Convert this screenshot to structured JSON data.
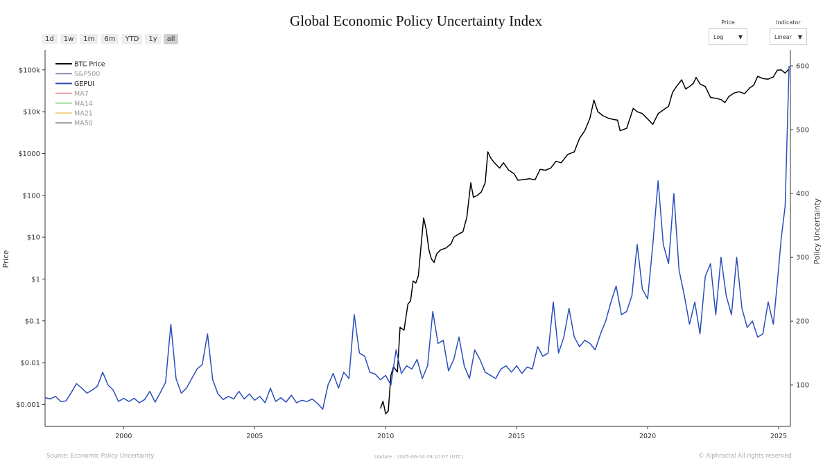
{
  "page": {
    "title": "Global Economic Policy Uncertainty Index",
    "range_buttons": [
      "1d",
      "1w",
      "1m",
      "6m",
      "YTD",
      "1y",
      "all"
    ],
    "active_range": "all",
    "controls": {
      "price": {
        "label": "Price",
        "value": "Log"
      },
      "indicator": {
        "label": "Indicator",
        "value": "Linear"
      }
    },
    "footer": {
      "source": "Source: Economic Policy Uncertainty",
      "update": "Update : 2025-06-04 08:10:07 (UTC)",
      "copyright": "© Alphractal All rights reserved"
    }
  },
  "chart_data": {
    "type": "line",
    "title": "Global Economic Policy Uncertainty Index",
    "xlabel": "",
    "ylabel_left": "Price",
    "ylabel_right": "Policy Uncertainty",
    "xlim": [
      1997.0,
      2025.45
    ],
    "x_ticks": [
      2000,
      2005,
      2010,
      2015,
      2020,
      2025
    ],
    "y_left_scale": "log",
    "y_left_lim": [
      0.0003,
      300000
    ],
    "y_left_ticks": [
      {
        "value": 0.001,
        "label": "$0.001"
      },
      {
        "value": 0.01,
        "label": "$0.01"
      },
      {
        "value": 0.1,
        "label": "$0.1"
      },
      {
        "value": 1,
        "label": "$1"
      },
      {
        "value": 10,
        "label": "$10"
      },
      {
        "value": 100,
        "label": "$100"
      },
      {
        "value": 1000,
        "label": "$1000"
      },
      {
        "value": 10000,
        "label": "$10k"
      },
      {
        "value": 100000,
        "label": "$100k"
      }
    ],
    "y_right_scale": "linear",
    "y_right_lim": [
      35,
      625
    ],
    "y_right_ticks": [
      100,
      200,
      300,
      400,
      500,
      600
    ],
    "grid": false,
    "legend_position": "top-left",
    "legend": [
      {
        "name": "BTC Price",
        "color": "#000000",
        "text_color": "#222222"
      },
      {
        "name": "S&P500",
        "color": "#8a8aa8",
        "text_color": "#999999"
      },
      {
        "name": "GEPUI",
        "color": "#2a4dbd",
        "text_color": "#222222"
      },
      {
        "name": "MA7",
        "color": "#e8a0a0",
        "text_color": "#999999"
      },
      {
        "name": "MA14",
        "color": "#a8d8a8",
        "text_color": "#999999"
      },
      {
        "name": "MA21",
        "color": "#f2d28c",
        "text_color": "#999999"
      },
      {
        "name": "MA50",
        "color": "#8aa08a",
        "text_color": "#999999"
      }
    ],
    "series": [
      {
        "name": "BTC Price",
        "axis": "left",
        "color": "#000000",
        "points": [
          [
            2009.8,
            0.0008
          ],
          [
            2009.9,
            0.0012
          ],
          [
            2010.0,
            0.0006
          ],
          [
            2010.1,
            0.0007
          ],
          [
            2010.2,
            0.005
          ],
          [
            2010.3,
            0.008
          ],
          [
            2010.45,
            0.006
          ],
          [
            2010.55,
            0.07
          ],
          [
            2010.7,
            0.06
          ],
          [
            2010.85,
            0.25
          ],
          [
            2010.95,
            0.3
          ],
          [
            2011.05,
            0.9
          ],
          [
            2011.15,
            0.8
          ],
          [
            2011.25,
            1.2
          ],
          [
            2011.35,
            6
          ],
          [
            2011.45,
            29
          ],
          [
            2011.55,
            15
          ],
          [
            2011.65,
            5
          ],
          [
            2011.75,
            3
          ],
          [
            2011.85,
            2.5
          ],
          [
            2011.95,
            4
          ],
          [
            2012.1,
            5
          ],
          [
            2012.3,
            5.5
          ],
          [
            2012.5,
            7
          ],
          [
            2012.6,
            10
          ],
          [
            2012.8,
            12
          ],
          [
            2012.95,
            13.5
          ],
          [
            2013.1,
            30
          ],
          [
            2013.25,
            200
          ],
          [
            2013.35,
            90
          ],
          [
            2013.5,
            100
          ],
          [
            2013.65,
            120
          ],
          [
            2013.8,
            200
          ],
          [
            2013.9,
            1100
          ],
          [
            2014.0,
            800
          ],
          [
            2014.15,
            600
          ],
          [
            2014.35,
            450
          ],
          [
            2014.5,
            600
          ],
          [
            2014.7,
            400
          ],
          [
            2014.9,
            330
          ],
          [
            2015.05,
            230
          ],
          [
            2015.3,
            240
          ],
          [
            2015.5,
            250
          ],
          [
            2015.7,
            235
          ],
          [
            2015.9,
            420
          ],
          [
            2016.1,
            400
          ],
          [
            2016.3,
            450
          ],
          [
            2016.5,
            650
          ],
          [
            2016.7,
            600
          ],
          [
            2016.95,
            950
          ],
          [
            2017.2,
            1100
          ],
          [
            2017.4,
            2300
          ],
          [
            2017.6,
            3500
          ],
          [
            2017.8,
            7000
          ],
          [
            2017.95,
            19000
          ],
          [
            2018.1,
            10000
          ],
          [
            2018.3,
            8000
          ],
          [
            2018.5,
            7000
          ],
          [
            2018.7,
            6500
          ],
          [
            2018.85,
            6300
          ],
          [
            2018.95,
            3500
          ],
          [
            2019.2,
            4000
          ],
          [
            2019.45,
            12000
          ],
          [
            2019.6,
            10000
          ],
          [
            2019.8,
            9000
          ],
          [
            2019.95,
            7200
          ],
          [
            2020.2,
            5000
          ],
          [
            2020.4,
            9000
          ],
          [
            2020.6,
            11000
          ],
          [
            2020.8,
            13500
          ],
          [
            2020.95,
            29000
          ],
          [
            2021.1,
            40000
          ],
          [
            2021.3,
            58000
          ],
          [
            2021.45,
            35000
          ],
          [
            2021.6,
            40000
          ],
          [
            2021.75,
            48000
          ],
          [
            2021.85,
            66000
          ],
          [
            2022.0,
            46000
          ],
          [
            2022.2,
            40000
          ],
          [
            2022.4,
            22000
          ],
          [
            2022.6,
            21000
          ],
          [
            2022.8,
            19500
          ],
          [
            2022.95,
            16500
          ],
          [
            2023.1,
            23000
          ],
          [
            2023.3,
            28000
          ],
          [
            2023.5,
            30000
          ],
          [
            2023.7,
            27000
          ],
          [
            2023.9,
            37000
          ],
          [
            2024.05,
            43000
          ],
          [
            2024.2,
            70000
          ],
          [
            2024.4,
            62000
          ],
          [
            2024.6,
            60000
          ],
          [
            2024.8,
            68000
          ],
          [
            2024.95,
            98000
          ],
          [
            2025.1,
            100000
          ],
          [
            2025.25,
            84000
          ],
          [
            2025.4,
            105000
          ]
        ]
      },
      {
        "name": "GEPUI",
        "axis": "right",
        "color": "#2a4dbd",
        "points": [
          [
            1997.0,
            80
          ],
          [
            1997.2,
            78
          ],
          [
            1997.4,
            82
          ],
          [
            1997.6,
            74
          ],
          [
            1997.8,
            75
          ],
          [
            1998.0,
            88
          ],
          [
            1998.2,
            102
          ],
          [
            1998.4,
            95
          ],
          [
            1998.6,
            87
          ],
          [
            1998.8,
            92
          ],
          [
            1999.0,
            98
          ],
          [
            1999.2,
            120
          ],
          [
            1999.4,
            100
          ],
          [
            1999.6,
            92
          ],
          [
            1999.8,
            74
          ],
          [
            2000.0,
            79
          ],
          [
            2000.2,
            74
          ],
          [
            2000.4,
            79
          ],
          [
            2000.6,
            72
          ],
          [
            2000.8,
            77
          ],
          [
            2001.0,
            90
          ],
          [
            2001.2,
            73
          ],
          [
            2001.4,
            88
          ],
          [
            2001.6,
            104
          ],
          [
            2001.8,
            195
          ],
          [
            2002.0,
            110
          ],
          [
            2002.2,
            87
          ],
          [
            2002.4,
            95
          ],
          [
            2002.6,
            110
          ],
          [
            2002.8,
            125
          ],
          [
            2003.0,
            132
          ],
          [
            2003.2,
            180
          ],
          [
            2003.4,
            108
          ],
          [
            2003.6,
            86
          ],
          [
            2003.8,
            77
          ],
          [
            2004.0,
            82
          ],
          [
            2004.2,
            78
          ],
          [
            2004.4,
            90
          ],
          [
            2004.6,
            78
          ],
          [
            2004.8,
            86
          ],
          [
            2005.0,
            76
          ],
          [
            2005.2,
            82
          ],
          [
            2005.4,
            72
          ],
          [
            2005.6,
            95
          ],
          [
            2005.8,
            74
          ],
          [
            2006.0,
            80
          ],
          [
            2006.2,
            73
          ],
          [
            2006.4,
            84
          ],
          [
            2006.6,
            72
          ],
          [
            2006.8,
            76
          ],
          [
            2007.0,
            74
          ],
          [
            2007.2,
            78
          ],
          [
            2007.4,
            71
          ],
          [
            2007.6,
            62
          ],
          [
            2007.8,
            100
          ],
          [
            2008.0,
            118
          ],
          [
            2008.2,
            95
          ],
          [
            2008.4,
            120
          ],
          [
            2008.6,
            110
          ],
          [
            2008.8,
            210
          ],
          [
            2009.0,
            150
          ],
          [
            2009.2,
            145
          ],
          [
            2009.4,
            120
          ],
          [
            2009.6,
            117
          ],
          [
            2009.8,
            108
          ],
          [
            2010.0,
            115
          ],
          [
            2010.2,
            100
          ],
          [
            2010.4,
            155
          ],
          [
            2010.6,
            118
          ],
          [
            2010.8,
            130
          ],
          [
            2011.0,
            125
          ],
          [
            2011.2,
            140
          ],
          [
            2011.4,
            110
          ],
          [
            2011.6,
            130
          ],
          [
            2011.8,
            215
          ],
          [
            2012.0,
            165
          ],
          [
            2012.2,
            170
          ],
          [
            2012.4,
            122
          ],
          [
            2012.6,
            140
          ],
          [
            2012.8,
            175
          ],
          [
            2013.0,
            130
          ],
          [
            2013.2,
            110
          ],
          [
            2013.4,
            155
          ],
          [
            2013.6,
            140
          ],
          [
            2013.8,
            120
          ],
          [
            2014.0,
            115
          ],
          [
            2014.2,
            110
          ],
          [
            2014.4,
            125
          ],
          [
            2014.6,
            130
          ],
          [
            2014.8,
            120
          ],
          [
            2015.0,
            130
          ],
          [
            2015.2,
            118
          ],
          [
            2015.4,
            128
          ],
          [
            2015.6,
            125
          ],
          [
            2015.8,
            160
          ],
          [
            2016.0,
            145
          ],
          [
            2016.2,
            150
          ],
          [
            2016.4,
            230
          ],
          [
            2016.6,
            150
          ],
          [
            2016.8,
            175
          ],
          [
            2017.0,
            220
          ],
          [
            2017.2,
            175
          ],
          [
            2017.4,
            160
          ],
          [
            2017.6,
            170
          ],
          [
            2017.8,
            165
          ],
          [
            2018.0,
            155
          ],
          [
            2018.2,
            180
          ],
          [
            2018.4,
            200
          ],
          [
            2018.6,
            230
          ],
          [
            2018.8,
            255
          ],
          [
            2019.0,
            210
          ],
          [
            2019.2,
            215
          ],
          [
            2019.4,
            240
          ],
          [
            2019.6,
            320
          ],
          [
            2019.8,
            250
          ],
          [
            2020.0,
            235
          ],
          [
            2020.2,
            320
          ],
          [
            2020.4,
            420
          ],
          [
            2020.6,
            320
          ],
          [
            2020.8,
            290
          ],
          [
            2021.0,
            400
          ],
          [
            2021.2,
            280
          ],
          [
            2021.4,
            240
          ],
          [
            2021.6,
            195
          ],
          [
            2021.8,
            230
          ],
          [
            2022.0,
            180
          ],
          [
            2022.2,
            270
          ],
          [
            2022.4,
            290
          ],
          [
            2022.6,
            210
          ],
          [
            2022.8,
            300
          ],
          [
            2023.0,
            240
          ],
          [
            2023.2,
            210
          ],
          [
            2023.4,
            300
          ],
          [
            2023.6,
            220
          ],
          [
            2023.8,
            190
          ],
          [
            2024.0,
            200
          ],
          [
            2024.2,
            175
          ],
          [
            2024.4,
            180
          ],
          [
            2024.6,
            230
          ],
          [
            2024.8,
            195
          ],
          [
            2024.95,
            260
          ],
          [
            2025.1,
            330
          ],
          [
            2025.25,
            380
          ],
          [
            2025.4,
            600
          ]
        ]
      }
    ]
  }
}
